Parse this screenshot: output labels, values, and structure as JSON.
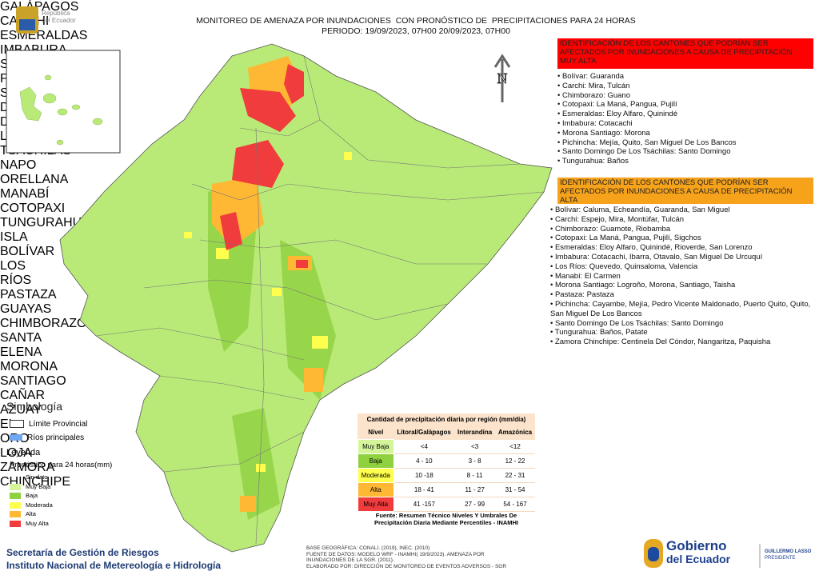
{
  "header": {
    "country_logo": [
      "República",
      "del Ecuador"
    ],
    "title": "MONITOREO DE AMENAZA POR INUNDACIONES  CON PRONÓSTICO DE  PRECIPITACIONES PARA 24 HORAS",
    "period": "PERIODO: 19/09/2023, 07H00 20/09/2023, 07H00"
  },
  "map": {
    "north": "N",
    "labels": [
      "GALÁPAGOS",
      "CARCHI",
      "ESMERALDAS",
      "IMBABURA",
      "SUCUMBÍOS",
      "PICHINCHA",
      "SANTO DOMINGO DE LOS TSÁCHILAS",
      "NAPO",
      "ORELLANA",
      "MANABÍ",
      "COTOPAXI",
      "TUNGURAHUA",
      "ISLA",
      "BOLÍVAR",
      "LOS RÍOS",
      "PASTAZA",
      "GUAYAS",
      "CHIMBORAZO",
      "SANTA ELENA",
      "MORONA SANTIAGO",
      "CAÑAR",
      "AZUAY",
      "EL ORO",
      "LOJA",
      "ZAMORA CHINCHIPE"
    ]
  },
  "very_high": {
    "title": "IDENTIFICACIÓN DE LOS CANTONES QUE PODRÍAN SER AFECTADOS POR INUNDACIONES  A CAUSA DE PRECIPITACIÓN MUY ALTA",
    "items": [
      "Bolívar: Guaranda",
      "Carchi: Mira, Tulcán",
      "Chimborazo: Guano",
      "Cotopaxi: La Maná, Pangua, Pujilí",
      "Esmeraldas: Eloy Alfaro, Quinindé",
      "Imbabura: Cotacachi",
      "Morona Santiago: Morona",
      "Pichincha: Mejía, Quito, San Miguel De Los Bancos",
      "Santo Domingo De Los Tsáchilas: Santo Domingo",
      "Tungurahua: Baños"
    ]
  },
  "high": {
    "title": "IDENTIFICACIÓN DE LOS CANTONES QUE  PODRÍAN SER AFECTADOS POR INUNDACIONES  A CAUSA DE PRECIPITACIÓN ALTA",
    "items": [
      "Bolívar: Caluma, Echeandía, Guaranda, San Miguel",
      "Carchi: Espejo, Mira, Montúfar, Tulcán",
      "Chimborazo: Guamote, Riobamba",
      "Cotopaxi: La Maná, Pangua, Pujilí, Sigchos",
      "Esmeraldas: Eloy Alfaro, Quinindé, Rioverde, San Lorenzo",
      "Imbabura: Cotacachi, Ibarra, Otavalo, San Miguel De Urcuquí",
      "Los Ríos: Quevedo, Quinsaloma, Valencia",
      "Manabí: El Carmen",
      "Morona Santiago: Logroño, Morona, Santiago, Taisha",
      "Pastaza: Pastaza",
      "Pichincha: Cayambe, Mejía, Pedro Vicente Maldonado, Puerto Quito, Quito, San Miguel De Los Bancos",
      "Santo Domingo De Los Tsáchilas: Santo Domingo",
      "Tungurahua: Baños, Patate",
      "Zamora Chinchipe: Centinela Del Cóndor, Nangaritza, Paquisha"
    ]
  },
  "legend": {
    "title": "Simbología",
    "items": [
      "Límite Provincial",
      "Ríos principales"
    ],
    "subtitle": "Leyenda",
    "forecast_title": "Pronóstico para 24 horas(mm)",
    "classes": [
      "Sin dato",
      "Muy Baja",
      "Baja",
      "Moderada",
      "Alta",
      "Muy Alta"
    ]
  },
  "table": {
    "title": "Cantidad de precipitación diaria por región (mm/día)",
    "header": [
      "Nivel",
      "Litoral/Galápagos",
      "Interandina",
      "Amazónica"
    ],
    "rows": [
      [
        "Muy Baja",
        "<4",
        "<3",
        "<12"
      ],
      [
        "Baja",
        "4 - 10",
        "3 - 8",
        "12 - 22"
      ],
      [
        "Moderada",
        "10 -18",
        "8 - 11",
        "22 - 31"
      ],
      [
        "Alta",
        "18 - 41",
        "11 - 27",
        "31 - 54"
      ],
      [
        "Muy Alta",
        "41 -157",
        "27 - 99",
        "54 - 167"
      ]
    ],
    "source": "Fuente: Resumen Técnico Niveles Y Umbrales De Precipitación Diaria Mediante Percentiles - INAMHI"
  },
  "footer": {
    "agencies": [
      "Secretaría de Gestión de Riesgos",
      "Instituto Nacional de Metereología e Hidrología"
    ],
    "credits": [
      "BASE GEOGRÁFICA: CONALI. (2019), INEC. (2010)",
      "FUENTE DE DATOS: MODELO WRF - INAMHI( 19/9/2023).  AMENAZA POR INUNDACIONES DE LA SGR. (2011).",
      "ELABORADO POR: DIRECCIÓN DE MONITOREO DE EVENTOS ADVERSOS - SGR"
    ],
    "gov_logo": [
      "Gobierno",
      "del Ecuador"
    ],
    "president": [
      "GUILLERMO LASSO",
      "PRESIDENTE"
    ]
  }
}
